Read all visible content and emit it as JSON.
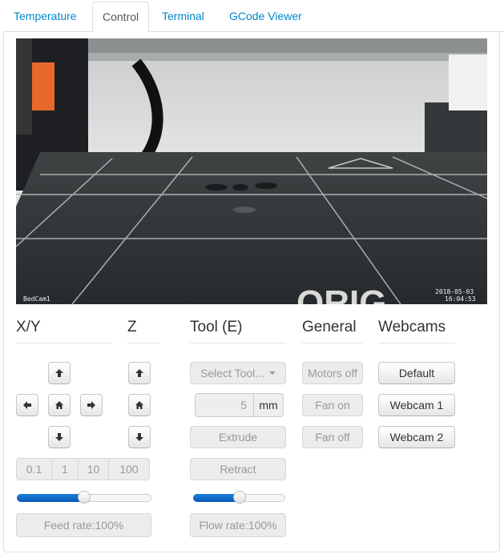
{
  "tabs": [
    {
      "label": "Temperature",
      "active": false
    },
    {
      "label": "Control",
      "active": true
    },
    {
      "label": "Terminal",
      "active": false
    },
    {
      "label": "GCode Viewer",
      "active": false
    }
  ],
  "webcam": {
    "label_left": "BedCam1",
    "label_date": "2018-05-03",
    "label_time": "16:04:53"
  },
  "sections": {
    "xy": {
      "title": "X/Y",
      "icons": [
        "arrow-up-icon",
        "arrow-left-icon",
        "home-icon",
        "arrow-right-icon",
        "arrow-down-icon"
      ],
      "steps": [
        "0.1",
        "1",
        "10",
        "100"
      ],
      "feed_rate_label": "Feed rate:100%",
      "feed_rate_value": 100
    },
    "z": {
      "title": "Z",
      "icons": [
        "arrow-up-icon",
        "home-icon",
        "arrow-down-icon"
      ]
    },
    "tool": {
      "title": "Tool (E)",
      "select_label": "Select Tool...",
      "amount": "5",
      "unit": "mm",
      "extrude_label": "Extrude",
      "retract_label": "Retract",
      "flow_rate_label": "Flow rate:100%",
      "flow_rate_value": 100
    },
    "general": {
      "title": "General",
      "motors_off": "Motors off",
      "fan_on": "Fan on",
      "fan_off": "Fan off"
    },
    "webcams": {
      "title": "Webcams",
      "buttons": [
        "Default",
        "Webcam 1",
        "Webcam 2"
      ]
    }
  },
  "colors": {
    "link": "#0088cc",
    "slider_fill": "#0a6ad0"
  }
}
